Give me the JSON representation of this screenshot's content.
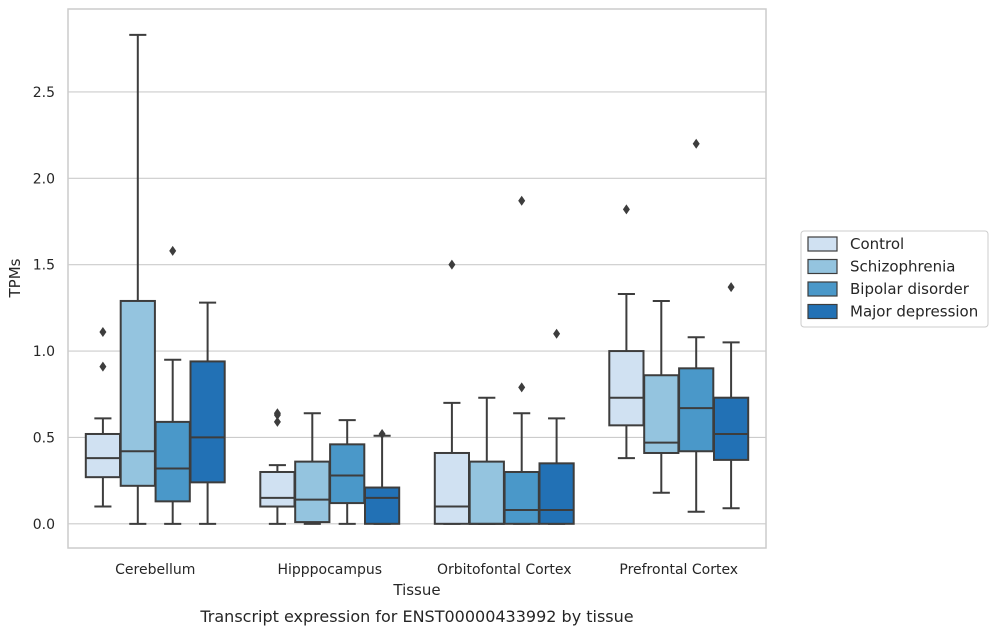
{
  "caption": "Transcript expression for ENST00000433992 by tissue",
  "chart_data": {
    "type": "box",
    "xlabel": "Tissue",
    "ylabel": "TPMs",
    "ylim": [
      -0.14,
      2.98
    ],
    "yticks": [
      "0.0",
      "0.5",
      "1.0",
      "1.5",
      "2.0",
      "2.5"
    ],
    "grid": "horizontal",
    "legend_position": "right",
    "categories": [
      "Cerebellum",
      "Hipppocampus",
      "Orbitofontal Cortex",
      "Prefrontal Cortex"
    ],
    "series": [
      {
        "name": "Control",
        "color": "#d0e1f2",
        "boxes": [
          {
            "whislo": 0.1,
            "q1": 0.27,
            "med": 0.38,
            "q3": 0.52,
            "whishi": 0.61,
            "fliers": [
              0.91,
              1.11
            ]
          },
          {
            "whislo": 0.0,
            "q1": 0.1,
            "med": 0.15,
            "q3": 0.3,
            "whishi": 0.34,
            "fliers": [
              0.59,
              0.63,
              0.64
            ]
          },
          {
            "whislo": 0.0,
            "q1": 0.0,
            "med": 0.1,
            "q3": 0.41,
            "whishi": 0.7,
            "fliers": [
              1.5
            ]
          },
          {
            "whislo": 0.38,
            "q1": 0.57,
            "med": 0.73,
            "q3": 1.0,
            "whishi": 1.33,
            "fliers": [
              1.82
            ]
          }
        ]
      },
      {
        "name": "Schizophrenia",
        "color": "#94c4df",
        "boxes": [
          {
            "whislo": 0.0,
            "q1": 0.22,
            "med": 0.42,
            "q3": 1.29,
            "whishi": 2.83,
            "fliers": []
          },
          {
            "whislo": 0.0,
            "q1": 0.01,
            "med": 0.14,
            "q3": 0.36,
            "whishi": 0.64,
            "fliers": []
          },
          {
            "whislo": 0.0,
            "q1": 0.0,
            "med": 0.0,
            "q3": 0.36,
            "whishi": 0.73,
            "fliers": []
          },
          {
            "whislo": 0.18,
            "q1": 0.41,
            "med": 0.47,
            "q3": 0.86,
            "whishi": 1.29,
            "fliers": []
          }
        ]
      },
      {
        "name": "Bipolar disorder",
        "color": "#4a98c9",
        "boxes": [
          {
            "whislo": 0.0,
            "q1": 0.13,
            "med": 0.32,
            "q3": 0.59,
            "whishi": 0.95,
            "fliers": [
              1.58
            ]
          },
          {
            "whislo": 0.0,
            "q1": 0.12,
            "med": 0.28,
            "q3": 0.46,
            "whishi": 0.6,
            "fliers": []
          },
          {
            "whislo": 0.0,
            "q1": 0.0,
            "med": 0.08,
            "q3": 0.3,
            "whishi": 0.64,
            "fliers": [
              0.79,
              1.87
            ]
          },
          {
            "whislo": 0.07,
            "q1": 0.42,
            "med": 0.67,
            "q3": 0.9,
            "whishi": 1.08,
            "fliers": [
              2.2
            ]
          }
        ]
      },
      {
        "name": "Major depression",
        "color": "#2271b5",
        "boxes": [
          {
            "whislo": 0.0,
            "q1": 0.24,
            "med": 0.5,
            "q3": 0.94,
            "whishi": 1.28,
            "fliers": []
          },
          {
            "whislo": 0.0,
            "q1": 0.0,
            "med": 0.15,
            "q3": 0.21,
            "whishi": 0.51,
            "fliers": [
              0.52
            ]
          },
          {
            "whislo": 0.0,
            "q1": 0.0,
            "med": 0.08,
            "q3": 0.35,
            "whishi": 0.61,
            "fliers": [
              1.1
            ]
          },
          {
            "whislo": 0.09,
            "q1": 0.37,
            "med": 0.52,
            "q3": 0.73,
            "whishi": 1.05,
            "fliers": [
              1.37
            ]
          }
        ]
      }
    ]
  }
}
